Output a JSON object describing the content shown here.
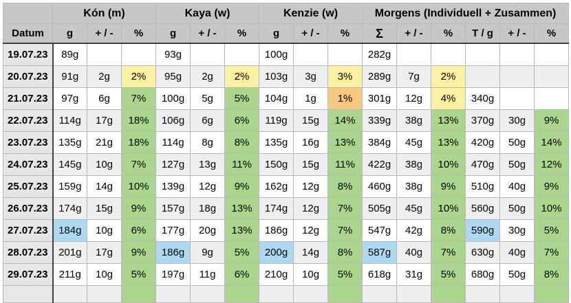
{
  "colors": {
    "header_bg": "#c7c7c7",
    "date_col_bg": "#e6e6e6",
    "row_even_bg": "#efefef",
    "row_odd_bg": "#ffffff",
    "grid_line": "#b9b9b9",
    "freeze_line": "#3f3f3f",
    "green": "#a9d58c",
    "yellow": "#faf1a1",
    "orange": "#f6c97f",
    "blue": "#abd9f2"
  },
  "table": {
    "groups": [
      {
        "label": "",
        "span": 1
      },
      {
        "label": "Kón (m)",
        "span": 3
      },
      {
        "label": "Kaya (w)",
        "span": 3
      },
      {
        "label": "Kenzie (w)",
        "span": 3
      },
      {
        "label": "Morgens (Individuell + Zusammen)",
        "span": 6
      }
    ],
    "columns": [
      "Datum",
      "g",
      "+ / -",
      "%",
      "g",
      "+ / -",
      "%",
      "g",
      "+ / -",
      "%",
      "Σ",
      "+ / -",
      "%",
      "T / g",
      "+ / -",
      "%"
    ],
    "rows": [
      {
        "date": "19.07.23",
        "cells": [
          "89g",
          "",
          "",
          "93g",
          "",
          "",
          "100g",
          "",
          "",
          "282g",
          "",
          "",
          "",
          "",
          ""
        ],
        "fills": [
          "",
          "",
          "",
          "",
          "",
          "",
          "",
          "",
          "",
          "",
          "",
          "",
          "",
          "",
          ""
        ]
      },
      {
        "date": "20.07.23",
        "cells": [
          "91g",
          "2g",
          "2%",
          "95g",
          "2g",
          "2%",
          "103g",
          "3g",
          "3%",
          "289g",
          "7g",
          "2%",
          "",
          "",
          ""
        ],
        "fills": [
          "",
          "",
          "yellow",
          "",
          "",
          "yellow",
          "",
          "",
          "yellow",
          "",
          "",
          "yellow",
          "",
          "",
          ""
        ]
      },
      {
        "date": "21.07.23",
        "cells": [
          "97g",
          "6g",
          "7%",
          "100g",
          "5g",
          "5%",
          "104g",
          "1g",
          "1%",
          "301g",
          "12g",
          "4%",
          "340g",
          "",
          ""
        ],
        "fills": [
          "",
          "",
          "green",
          "",
          "",
          "green",
          "",
          "",
          "orange",
          "",
          "",
          "yellow",
          "",
          "",
          ""
        ]
      },
      {
        "date": "22.07.23",
        "cells": [
          "114g",
          "17g",
          "18%",
          "106g",
          "6g",
          "6%",
          "119g",
          "15g",
          "14%",
          "339g",
          "38g",
          "13%",
          "370g",
          "30g",
          "9%"
        ],
        "fills": [
          "",
          "",
          "green",
          "",
          "",
          "green",
          "",
          "",
          "green",
          "",
          "",
          "green",
          "",
          "",
          "green"
        ]
      },
      {
        "date": "23.07.23",
        "cells": [
          "135g",
          "21g",
          "18%",
          "114g",
          "8g",
          "8%",
          "135g",
          "16g",
          "13%",
          "384g",
          "45g",
          "13%",
          "420g",
          "50g",
          "14%"
        ],
        "fills": [
          "",
          "",
          "green",
          "",
          "",
          "green",
          "",
          "",
          "green",
          "",
          "",
          "green",
          "",
          "",
          "green"
        ]
      },
      {
        "date": "24.07.23",
        "cells": [
          "145g",
          "10g",
          "7%",
          "127g",
          "13g",
          "11%",
          "150g",
          "15g",
          "11%",
          "422g",
          "38g",
          "10%",
          "470g",
          "50g",
          "12%"
        ],
        "fills": [
          "",
          "",
          "green",
          "",
          "",
          "green",
          "",
          "",
          "green",
          "",
          "",
          "green",
          "",
          "",
          "green"
        ]
      },
      {
        "date": "25.07.23",
        "cells": [
          "159g",
          "14g",
          "10%",
          "139g",
          "12g",
          "9%",
          "162g",
          "12g",
          "8%",
          "460g",
          "38g",
          "9%",
          "510g",
          "40g",
          "9%"
        ],
        "fills": [
          "",
          "",
          "green",
          "",
          "",
          "green",
          "",
          "",
          "green",
          "",
          "",
          "green",
          "",
          "",
          "green"
        ]
      },
      {
        "date": "26.07.23",
        "cells": [
          "174g",
          "15g",
          "9%",
          "157g",
          "18g",
          "13%",
          "174g",
          "12g",
          "7%",
          "505g",
          "45g",
          "10%",
          "560g",
          "50g",
          "10%"
        ],
        "fills": [
          "",
          "",
          "green",
          "",
          "",
          "green",
          "",
          "",
          "green",
          "",
          "",
          "green",
          "",
          "",
          "green"
        ]
      },
      {
        "date": "27.07.23",
        "cells": [
          "184g",
          "10g",
          "6%",
          "177g",
          "20g",
          "13%",
          "186g",
          "12g",
          "7%",
          "547g",
          "42g",
          "8%",
          "590g",
          "30g",
          "5%"
        ],
        "fills": [
          "blue",
          "",
          "green",
          "",
          "",
          "green",
          "",
          "",
          "green",
          "",
          "",
          "green",
          "blue",
          "",
          "green"
        ]
      },
      {
        "date": "28.07.23",
        "cells": [
          "201g",
          "17g",
          "9%",
          "186g",
          "9g",
          "5%",
          "200g",
          "14g",
          "8%",
          "587g",
          "40g",
          "7%",
          "630g",
          "40g",
          "7%"
        ],
        "fills": [
          "",
          "",
          "green",
          "blue",
          "",
          "green",
          "blue",
          "",
          "green",
          "blue",
          "",
          "green",
          "",
          "",
          "green"
        ]
      },
      {
        "date": "29.07.23",
        "cells": [
          "211g",
          "10g",
          "5%",
          "197g",
          "11g",
          "6%",
          "210g",
          "10g",
          "5%",
          "618g",
          "31g",
          "5%",
          "680g",
          "50g",
          "8%"
        ],
        "fills": [
          "",
          "",
          "green",
          "",
          "",
          "green",
          "",
          "",
          "green",
          "",
          "",
          "green",
          "",
          "",
          "green"
        ]
      }
    ],
    "partial_row": {
      "date": "",
      "cells": [
        "",
        "",
        "",
        "",
        "",
        "",
        "",
        "",
        "",
        "",
        "",
        "",
        "",
        "",
        ""
      ],
      "fills": [
        "",
        "",
        "green",
        "",
        "",
        "green",
        "",
        "",
        "green",
        "",
        "",
        "green",
        "",
        "",
        "green"
      ]
    }
  }
}
